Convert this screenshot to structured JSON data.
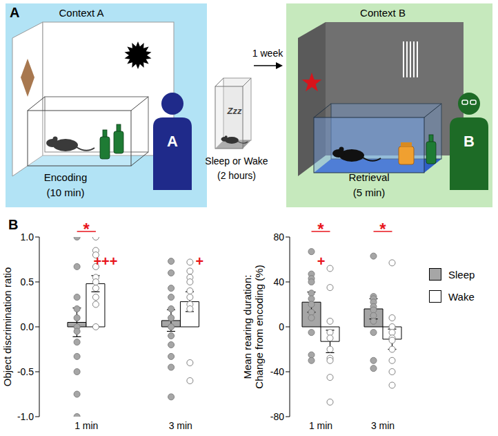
{
  "panel_labels": [
    "A",
    "B"
  ],
  "diagram": {
    "encoding": {
      "context": "Context A",
      "label": "Encoding",
      "duration": "(10 min)",
      "person": "A"
    },
    "interval": {
      "label": "Sleep or Wake",
      "duration": "(2 hours)",
      "sleep_icon": "Zzz"
    },
    "delay": "1 week",
    "retrieval": {
      "context": "Context B",
      "label": "Retrieval",
      "duration": "(5 min)",
      "person": "B"
    }
  },
  "chart_data": [
    {
      "type": "bar",
      "y_label": "Object discrimination ratio",
      "categories": [
        "1 min",
        "3 min"
      ],
      "series": [
        {
          "name": "Sleep",
          "color": "#a6a6a6",
          "values": [
            0.05,
            0.07
          ],
          "errors": [
            0.16,
            0.12
          ],
          "points": [
            [
              1.0,
              0.67,
              0.33,
              0.2,
              0.1,
              0.0,
              -0.05,
              -0.17,
              -0.33,
              -0.5,
              -0.75,
              -1.0
            ],
            [
              0.73,
              0.6,
              0.43,
              0.33,
              0.2,
              0.1,
              0.0,
              -0.1,
              -0.2,
              -0.33,
              -0.45,
              -0.78
            ]
          ]
        },
        {
          "name": "Wake",
          "color": "#ffffff",
          "values": [
            0.48,
            0.28
          ],
          "errors": [
            0.09,
            0.11
          ],
          "points": [
            [
              1.0,
              0.85,
              0.8,
              0.67,
              0.55,
              0.5,
              0.43,
              0.33,
              0.25,
              0.0
            ],
            [
              0.72,
              0.62,
              0.55,
              0.5,
              0.4,
              0.33,
              0.25,
              0.2,
              -0.4,
              -0.6
            ]
          ]
        }
      ],
      "ylim": [
        -1,
        1
      ],
      "yticks": [
        {
          "value": -1,
          "label": "-1.0"
        },
        {
          "value": -0.5,
          "label": "-0.5"
        },
        {
          "value": 0,
          "label": "0.0"
        },
        {
          "value": 0.5,
          "label": "0.5"
        },
        {
          "value": 1,
          "label": "1.0"
        }
      ],
      "annotations": [
        {
          "text": "*",
          "category": "1 min",
          "series": [
            "Sleep",
            "Wake"
          ]
        },
        {
          "text": "+++",
          "category": "1 min",
          "series": [
            "Wake"
          ]
        },
        {
          "text": "+",
          "category": "3 min",
          "series": [
            "Wake"
          ]
        }
      ]
    },
    {
      "type": "bar",
      "y_label": "Mean rearing duration: Change from encoding (%)",
      "categories": [
        "1 min",
        "3 min"
      ],
      "series": [
        {
          "name": "Sleep",
          "color": "#a6a6a6",
          "values": [
            22,
            16
          ],
          "errors": [
            9,
            9
          ],
          "points": [
            [
              67,
              47,
              43,
              40,
              30,
              25,
              20,
              13,
              8,
              -5,
              -25,
              -30
            ],
            [
              63,
              27,
              25,
              22,
              18,
              15,
              10,
              5,
              -5,
              -30,
              -37
            ]
          ]
        },
        {
          "name": "Wake",
          "color": "#ffffff",
          "values": [
            -13,
            -11
          ],
          "errors": [
            10,
            9
          ],
          "points": [
            [
              52,
              35,
              5,
              -5,
              -10,
              -20,
              -28,
              -30,
              -45,
              -67
            ],
            [
              57,
              8,
              0,
              -5,
              -10,
              -12,
              -20,
              -30,
              -40,
              -52
            ]
          ]
        }
      ],
      "ylim": [
        -80,
        80
      ],
      "yticks": [
        -80,
        -40,
        0,
        40,
        80
      ],
      "legend": "right",
      "annotations": [
        {
          "text": "*",
          "category": "1 min",
          "series": [
            "Sleep",
            "Wake"
          ]
        },
        {
          "text": "*",
          "category": "3 min",
          "series": [
            "Sleep",
            "Wake"
          ]
        },
        {
          "text": "+",
          "category": "1 min",
          "series": [
            "Sleep"
          ]
        }
      ]
    }
  ]
}
